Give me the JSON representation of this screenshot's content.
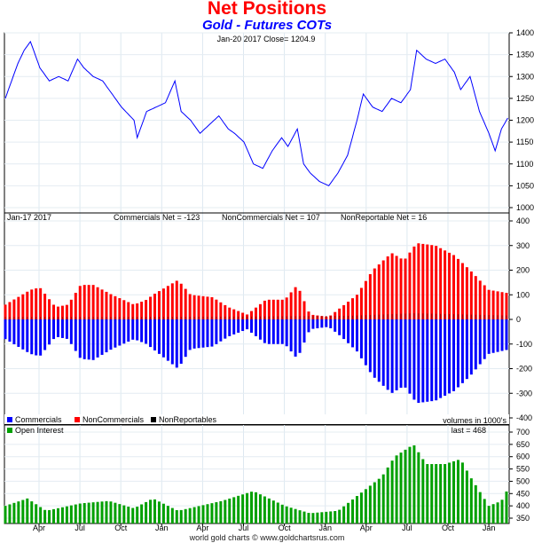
{
  "title": "Net Positions",
  "subtitle": "Gold - Futures COTs",
  "footer": "world gold charts © www.goldchartsrus.com",
  "colors": {
    "price": "#0000ff",
    "commercials": "#0000ff",
    "noncommercials": "#ff0000",
    "nonreportables": "#000000",
    "open_interest": "#00a000"
  },
  "chart_data": [
    {
      "type": "line",
      "name": "price",
      "info": "Jan-20  2017   Close= 1204.9",
      "ylim": [
        1000,
        1400
      ],
      "yticks": [
        1400,
        1350,
        1300,
        1250,
        1200,
        1150,
        1100,
        1050,
        1000
      ],
      "x_unit": "weeks",
      "points": [
        [
          0,
          1250
        ],
        [
          1,
          1270
        ],
        [
          4,
          1330
        ],
        [
          6,
          1360
        ],
        [
          8,
          1380
        ],
        [
          10,
          1340
        ],
        [
          11,
          1320
        ],
        [
          14,
          1290
        ],
        [
          17,
          1300
        ],
        [
          20,
          1290
        ],
        [
          23,
          1340
        ],
        [
          25,
          1320
        ],
        [
          28,
          1300
        ],
        [
          31,
          1290
        ],
        [
          34,
          1260
        ],
        [
          37,
          1230
        ],
        [
          41,
          1200
        ],
        [
          42,
          1160
        ],
        [
          45,
          1220
        ],
        [
          48,
          1230
        ],
        [
          51,
          1240
        ],
        [
          54,
          1290
        ],
        [
          56,
          1220
        ],
        [
          59,
          1200
        ],
        [
          62,
          1170
        ],
        [
          65,
          1190
        ],
        [
          68,
          1210
        ],
        [
          71,
          1180
        ],
        [
          73,
          1170
        ],
        [
          76,
          1150
        ],
        [
          79,
          1100
        ],
        [
          82,
          1090
        ],
        [
          85,
          1130
        ],
        [
          88,
          1160
        ],
        [
          90,
          1140
        ],
        [
          93,
          1180
        ],
        [
          95,
          1100
        ],
        [
          97,
          1080
        ],
        [
          100,
          1060
        ],
        [
          103,
          1050
        ],
        [
          106,
          1080
        ],
        [
          109,
          1120
        ],
        [
          112,
          1200
        ],
        [
          114,
          1260
        ],
        [
          117,
          1230
        ],
        [
          120,
          1220
        ],
        [
          123,
          1250
        ],
        [
          126,
          1240
        ],
        [
          129,
          1270
        ],
        [
          131,
          1360
        ],
        [
          134,
          1340
        ],
        [
          137,
          1330
        ],
        [
          140,
          1340
        ],
        [
          143,
          1310
        ],
        [
          145,
          1270
        ],
        [
          148,
          1300
        ],
        [
          151,
          1220
        ],
        [
          154,
          1170
        ],
        [
          156,
          1130
        ],
        [
          158,
          1180
        ],
        [
          160,
          1205
        ]
      ]
    },
    {
      "type": "bar",
      "name": "cot",
      "date": "Jan-17  2017",
      "stats": [
        "Commercials Net = -123",
        "NonCommercials Net = 107",
        "NonReportable Net = 16"
      ],
      "ylim": [
        -400,
        400
      ],
      "yticks": [
        400,
        300,
        200,
        100,
        0,
        -100,
        -200,
        -300,
        -400
      ],
      "legend": [
        "Commercials",
        "NonCommercials",
        "NonReportables"
      ],
      "note": "volumes in 1000's",
      "series": [
        {
          "name": "NonCommercials",
          "points": [
            [
              0,
              60
            ],
            [
              8,
              120
            ],
            [
              11,
              130
            ],
            [
              16,
              50
            ],
            [
              20,
              60
            ],
            [
              24,
              140
            ],
            [
              28,
              140
            ],
            [
              34,
              100
            ],
            [
              41,
              60
            ],
            [
              45,
              80
            ],
            [
              47,
              100
            ],
            [
              51,
              130
            ],
            [
              55,
              160
            ],
            [
              59,
              100
            ],
            [
              66,
              90
            ],
            [
              71,
              50
            ],
            [
              77,
              20
            ],
            [
              83,
              80
            ],
            [
              89,
              80
            ],
            [
              93,
              140
            ],
            [
              97,
              20
            ],
            [
              103,
              10
            ],
            [
              107,
              50
            ],
            [
              112,
              100
            ],
            [
              117,
              200
            ],
            [
              123,
              270
            ],
            [
              127,
              240
            ],
            [
              131,
              310
            ],
            [
              137,
              300
            ],
            [
              143,
              260
            ],
            [
              148,
              200
            ],
            [
              154,
              120
            ],
            [
              160,
              107
            ]
          ]
        },
        {
          "name": "Commercials",
          "points": [
            [
              0,
              -80
            ],
            [
              8,
              -140
            ],
            [
              11,
              -150
            ],
            [
              16,
              -70
            ],
            [
              20,
              -80
            ],
            [
              24,
              -160
            ],
            [
              28,
              -165
            ],
            [
              34,
              -120
            ],
            [
              41,
              -80
            ],
            [
              45,
              -100
            ],
            [
              47,
              -120
            ],
            [
              51,
              -160
            ],
            [
              55,
              -200
            ],
            [
              59,
              -120
            ],
            [
              66,
              -110
            ],
            [
              71,
              -70
            ],
            [
              77,
              -40
            ],
            [
              83,
              -100
            ],
            [
              89,
              -100
            ],
            [
              93,
              -160
            ],
            [
              97,
              -40
            ],
            [
              103,
              -30
            ],
            [
              107,
              -70
            ],
            [
              112,
              -130
            ],
            [
              117,
              -230
            ],
            [
              123,
              -300
            ],
            [
              127,
              -270
            ],
            [
              131,
              -340
            ],
            [
              137,
              -330
            ],
            [
              143,
              -290
            ],
            [
              148,
              -230
            ],
            [
              154,
              -140
            ],
            [
              160,
              -123
            ]
          ]
        },
        {
          "name": "NonReportables",
          "points": [
            [
              0,
              10
            ],
            [
              40,
              10
            ],
            [
              80,
              12
            ],
            [
              110,
              15
            ],
            [
              130,
              25
            ],
            [
              160,
              16
            ]
          ]
        }
      ]
    },
    {
      "type": "bar",
      "name": "open_interest",
      "legend": "Open Interest",
      "last": "last = 468",
      "ylim": [
        350,
        700
      ],
      "yticks": [
        700,
        650,
        600,
        550,
        500,
        450,
        400,
        350
      ],
      "points": [
        [
          0,
          400
        ],
        [
          7,
          430
        ],
        [
          13,
          380
        ],
        [
          24,
          410
        ],
        [
          33,
          420
        ],
        [
          41,
          390
        ],
        [
          47,
          430
        ],
        [
          55,
          380
        ],
        [
          69,
          420
        ],
        [
          79,
          460
        ],
        [
          89,
          400
        ],
        [
          97,
          370
        ],
        [
          106,
          380
        ],
        [
          112,
          440
        ],
        [
          120,
          520
        ],
        [
          124,
          600
        ],
        [
          130,
          650
        ],
        [
          134,
          570
        ],
        [
          140,
          570
        ],
        [
          145,
          590
        ],
        [
          148,
          520
        ],
        [
          154,
          400
        ],
        [
          158,
          420
        ],
        [
          160,
          468
        ]
      ],
      "xticks": [
        "Apr",
        "Jul",
        "Oct",
        "Jan",
        "Apr",
        "Jul",
        "Oct",
        "Jan",
        "Apr",
        "Jul",
        "Oct",
        "Jan"
      ]
    }
  ]
}
